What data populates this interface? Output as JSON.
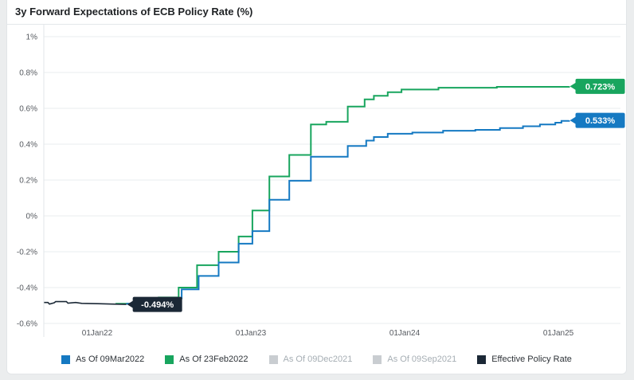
{
  "title": "3y Forward Expectations of ECB Policy Rate (%)",
  "chart_data": {
    "type": "line",
    "subtype": "step-after-forward-curves",
    "title": "3y Forward Expectations of ECB Policy Rate (%)",
    "x_unit": "decimal_year",
    "xlim": [
      2021.653,
      2025.404
    ],
    "ylim": [
      -0.6,
      1.0
    ],
    "grid": "horizontal",
    "y_ticks": [
      {
        "label": "1%",
        "value": 1.0
      },
      {
        "label": "0.8%",
        "value": 0.8
      },
      {
        "label": "0.6%",
        "value": 0.6
      },
      {
        "label": "0.4%",
        "value": 0.4
      },
      {
        "label": "0.2%",
        "value": 0.2
      },
      {
        "label": "0%",
        "value": 0.0
      },
      {
        "label": "-0.2%",
        "value": -0.2
      },
      {
        "label": "-0.4%",
        "value": -0.4
      },
      {
        "label": "-0.6%",
        "value": -0.6
      }
    ],
    "x_ticks": [
      {
        "label": "01Jan22",
        "value": 2022
      },
      {
        "label": "01Jan23",
        "value": 2023
      },
      {
        "label": "01Jan24",
        "value": 2024
      },
      {
        "label": "01Jan25",
        "value": 2025
      }
    ],
    "series": [
      {
        "name": "As Of 23Feb2022",
        "color": "#18a55e",
        "step": true,
        "width": 2,
        "points": [
          [
            2022.12,
            -0.49
          ],
          [
            2022.4,
            -0.455
          ],
          [
            2022.53,
            -0.4
          ],
          [
            2022.65,
            -0.275
          ],
          [
            2022.79,
            -0.2
          ],
          [
            2022.92,
            -0.115
          ],
          [
            2023.01,
            0.03
          ],
          [
            2023.12,
            0.22
          ],
          [
            2023.25,
            0.34
          ],
          [
            2023.39,
            0.51
          ],
          [
            2023.49,
            0.525
          ],
          [
            2023.63,
            0.61
          ],
          [
            2023.74,
            0.65
          ],
          [
            2023.8,
            0.67
          ],
          [
            2023.89,
            0.69
          ],
          [
            2023.98,
            0.705
          ],
          [
            2024.22,
            0.715
          ],
          [
            2024.6,
            0.72
          ],
          [
            2025.07,
            0.723
          ]
        ]
      },
      {
        "name": "As Of 09Mar2022",
        "color": "#1579c2",
        "step": true,
        "width": 2,
        "points": [
          [
            2022.19,
            -0.49
          ],
          [
            2022.4,
            -0.46
          ],
          [
            2022.55,
            -0.41
          ],
          [
            2022.66,
            -0.335
          ],
          [
            2022.79,
            -0.26
          ],
          [
            2022.92,
            -0.155
          ],
          [
            2023.01,
            -0.085
          ],
          [
            2023.12,
            0.09
          ],
          [
            2023.25,
            0.196
          ],
          [
            2023.39,
            0.33
          ],
          [
            2023.63,
            0.39
          ],
          [
            2023.75,
            0.42
          ],
          [
            2023.8,
            0.44
          ],
          [
            2023.89,
            0.458
          ],
          [
            2024.05,
            0.465
          ],
          [
            2024.25,
            0.475
          ],
          [
            2024.46,
            0.48
          ],
          [
            2024.62,
            0.49
          ],
          [
            2024.77,
            0.5
          ],
          [
            2024.88,
            0.51
          ],
          [
            2024.98,
            0.52
          ],
          [
            2025.02,
            0.53
          ],
          [
            2025.07,
            0.533
          ]
        ]
      },
      {
        "name": "Effective Policy Rate",
        "color": "#1b2836",
        "step": false,
        "width": 1.6,
        "points": [
          [
            2021.655,
            -0.483
          ],
          [
            2021.68,
            -0.483
          ],
          [
            2021.69,
            -0.492
          ],
          [
            2021.72,
            -0.485
          ],
          [
            2021.73,
            -0.478
          ],
          [
            2021.8,
            -0.478
          ],
          [
            2021.81,
            -0.487
          ],
          [
            2021.86,
            -0.483
          ],
          [
            2021.9,
            -0.488
          ],
          [
            2022.0,
            -0.49
          ],
          [
            2022.1,
            -0.492
          ],
          [
            2022.19,
            -0.494
          ]
        ]
      }
    ],
    "end_labels": [
      {
        "text": "0.723%",
        "color": "#18a55e",
        "year": 2025.07,
        "value": 0.723
      },
      {
        "text": "0.533%",
        "color": "#1579c2",
        "year": 2025.07,
        "value": 0.533
      },
      {
        "text": "-0.494%",
        "color": "#1b2836",
        "year": 2022.19,
        "value": -0.494
      }
    ],
    "legend": [
      {
        "label": "As Of 09Mar2022",
        "color": "#1579c2",
        "active": true
      },
      {
        "label": "As Of 23Feb2022",
        "color": "#18a55e",
        "active": true
      },
      {
        "label": "As Of 09Dec2021",
        "color": "#c9cdd1",
        "active": false
      },
      {
        "label": "As Of 09Sep2021",
        "color": "#c9cdd1",
        "active": false
      },
      {
        "label": "Effective Policy Rate",
        "color": "#1b2836",
        "active": true
      }
    ],
    "legend_position": "bottom"
  }
}
